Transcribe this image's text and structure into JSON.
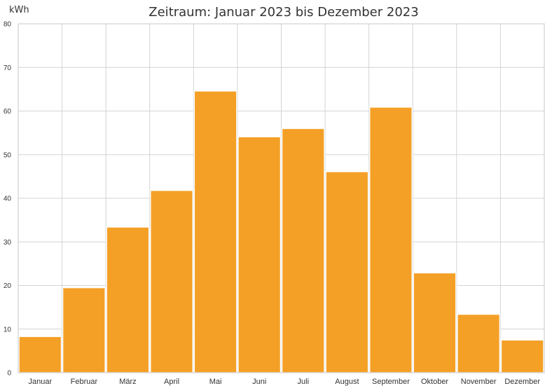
{
  "chart_data": {
    "type": "bar",
    "title": "Zeitraum: Januar 2023 bis Dezember 2023",
    "ylabel": "kWh",
    "xlabel": "",
    "categories": [
      "Januar",
      "Februar",
      "März",
      "April",
      "Mai",
      "Juni",
      "Juli",
      "August",
      "September",
      "Oktober",
      "November",
      "Dezember"
    ],
    "values": [
      8.3,
      19.5,
      33.4,
      41.8,
      64.6,
      54.1,
      56.0,
      46.1,
      60.9,
      22.9,
      13.4,
      7.5
    ],
    "ylim": [
      0,
      80
    ],
    "yticks": [
      0,
      10,
      20,
      30,
      40,
      50,
      60,
      70,
      80
    ],
    "grid": true,
    "bar_color": "#f4a026",
    "legend": "none"
  }
}
